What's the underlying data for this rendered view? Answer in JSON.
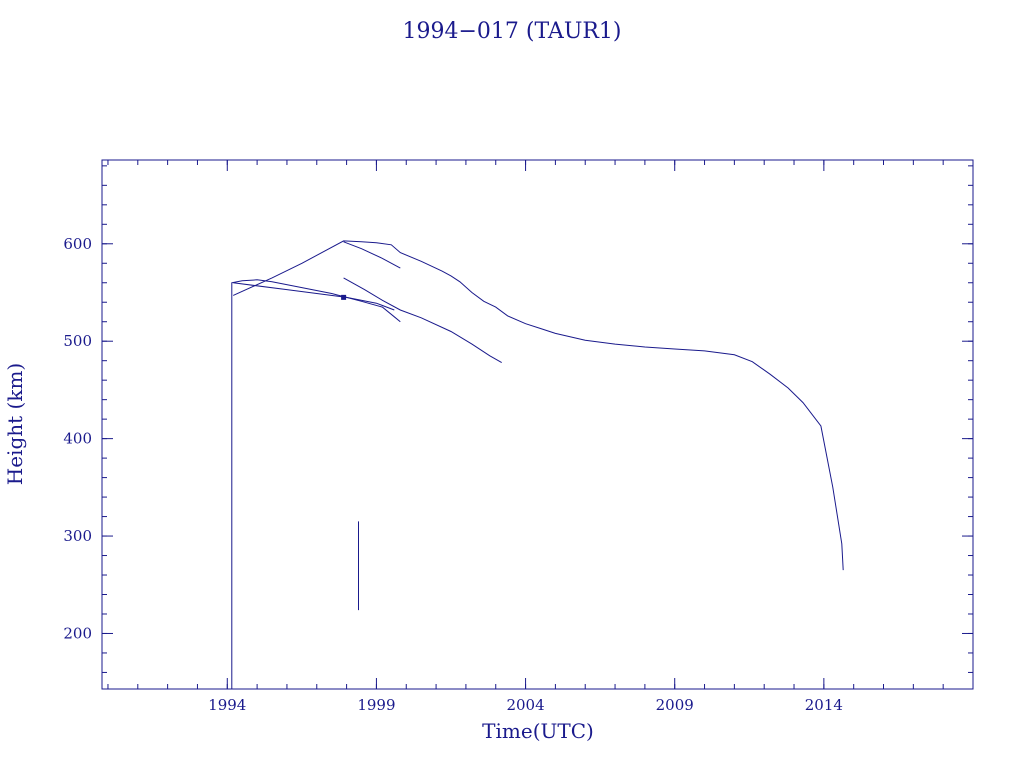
{
  "chart_data": {
    "type": "line",
    "title": "1994−017 (TAUR1)",
    "xlabel": "Time(UTC)",
    "ylabel": "Height (km)",
    "xlim": [
      1989.8,
      2019.0
    ],
    "ylim": [
      143,
      686
    ],
    "x_ticks": [
      1994,
      1999,
      2004,
      2009,
      2014
    ],
    "x_tick_labels": [
      "1994",
      "1999",
      "2004",
      "2009",
      "2014"
    ],
    "x_minor_step": 1,
    "y_ticks": [
      200,
      300,
      400,
      500,
      600
    ],
    "y_tick_labels": [
      "200",
      "300",
      "400",
      "500",
      "600"
    ],
    "y_minor_step": 20,
    "grid": false,
    "legend": "none",
    "colors": {
      "ink": "#1a1a8c"
    },
    "series": [
      {
        "points": [
          [
            1994.15,
            143
          ],
          [
            1994.15,
            560
          ],
          [
            1994.5,
            562
          ],
          [
            1995.0,
            563
          ],
          [
            1995.5,
            561
          ],
          [
            1996.5,
            555
          ],
          [
            1997.5,
            549
          ],
          [
            1998.5,
            541
          ],
          [
            1999.2,
            535
          ],
          [
            1999.6,
            525
          ],
          [
            1999.8,
            520
          ]
        ]
      },
      {
        "points": [
          [
            1994.2,
            560
          ],
          [
            1996.0,
            553
          ],
          [
            1998.0,
            545
          ],
          [
            1999.0,
            539
          ],
          [
            1999.6,
            532
          ]
        ]
      },
      {
        "points": [
          [
            1994.2,
            547
          ],
          [
            1995.5,
            565
          ],
          [
            1996.5,
            580
          ],
          [
            1997.9,
            603
          ],
          [
            1998.5,
            602
          ],
          [
            1999.0,
            601
          ],
          [
            1999.5,
            599
          ],
          [
            1999.8,
            591
          ],
          [
            2000.5,
            582
          ],
          [
            2001.2,
            572
          ],
          [
            2001.5,
            567
          ],
          [
            2001.8,
            561
          ],
          [
            2002.2,
            550
          ],
          [
            2002.6,
            541
          ],
          [
            2003.0,
            535
          ],
          [
            2003.4,
            526
          ],
          [
            2004.0,
            518
          ],
          [
            2004.5,
            513
          ],
          [
            2005.0,
            508
          ],
          [
            2006.0,
            501
          ],
          [
            2007.0,
            497
          ],
          [
            2008.0,
            494
          ],
          [
            2009.0,
            492
          ],
          [
            2010.0,
            490
          ],
          [
            2011.0,
            486
          ],
          [
            2011.6,
            479
          ],
          [
            2012.2,
            466
          ],
          [
            2012.8,
            452
          ],
          [
            2013.3,
            437
          ],
          [
            2013.9,
            413
          ],
          [
            2014.3,
            350
          ],
          [
            2014.6,
            292
          ],
          [
            2014.65,
            265
          ]
        ]
      },
      {
        "points": [
          [
            1997.9,
            602
          ],
          [
            1998.5,
            595
          ],
          [
            1999.2,
            585
          ],
          [
            1999.8,
            575
          ]
        ]
      },
      {
        "points": [
          [
            1997.9,
            565
          ],
          [
            1998.6,
            553
          ],
          [
            1999.2,
            542
          ],
          [
            1999.8,
            532
          ],
          [
            2000.5,
            524
          ],
          [
            2001.5,
            510
          ],
          [
            2002.2,
            497
          ],
          [
            2002.8,
            485
          ],
          [
            2003.2,
            478
          ]
        ]
      },
      {
        "points": [
          [
            1998.4,
            315
          ],
          [
            1998.4,
            224
          ]
        ]
      }
    ],
    "markers": [
      {
        "x": 1997.9,
        "y": 545
      }
    ]
  }
}
